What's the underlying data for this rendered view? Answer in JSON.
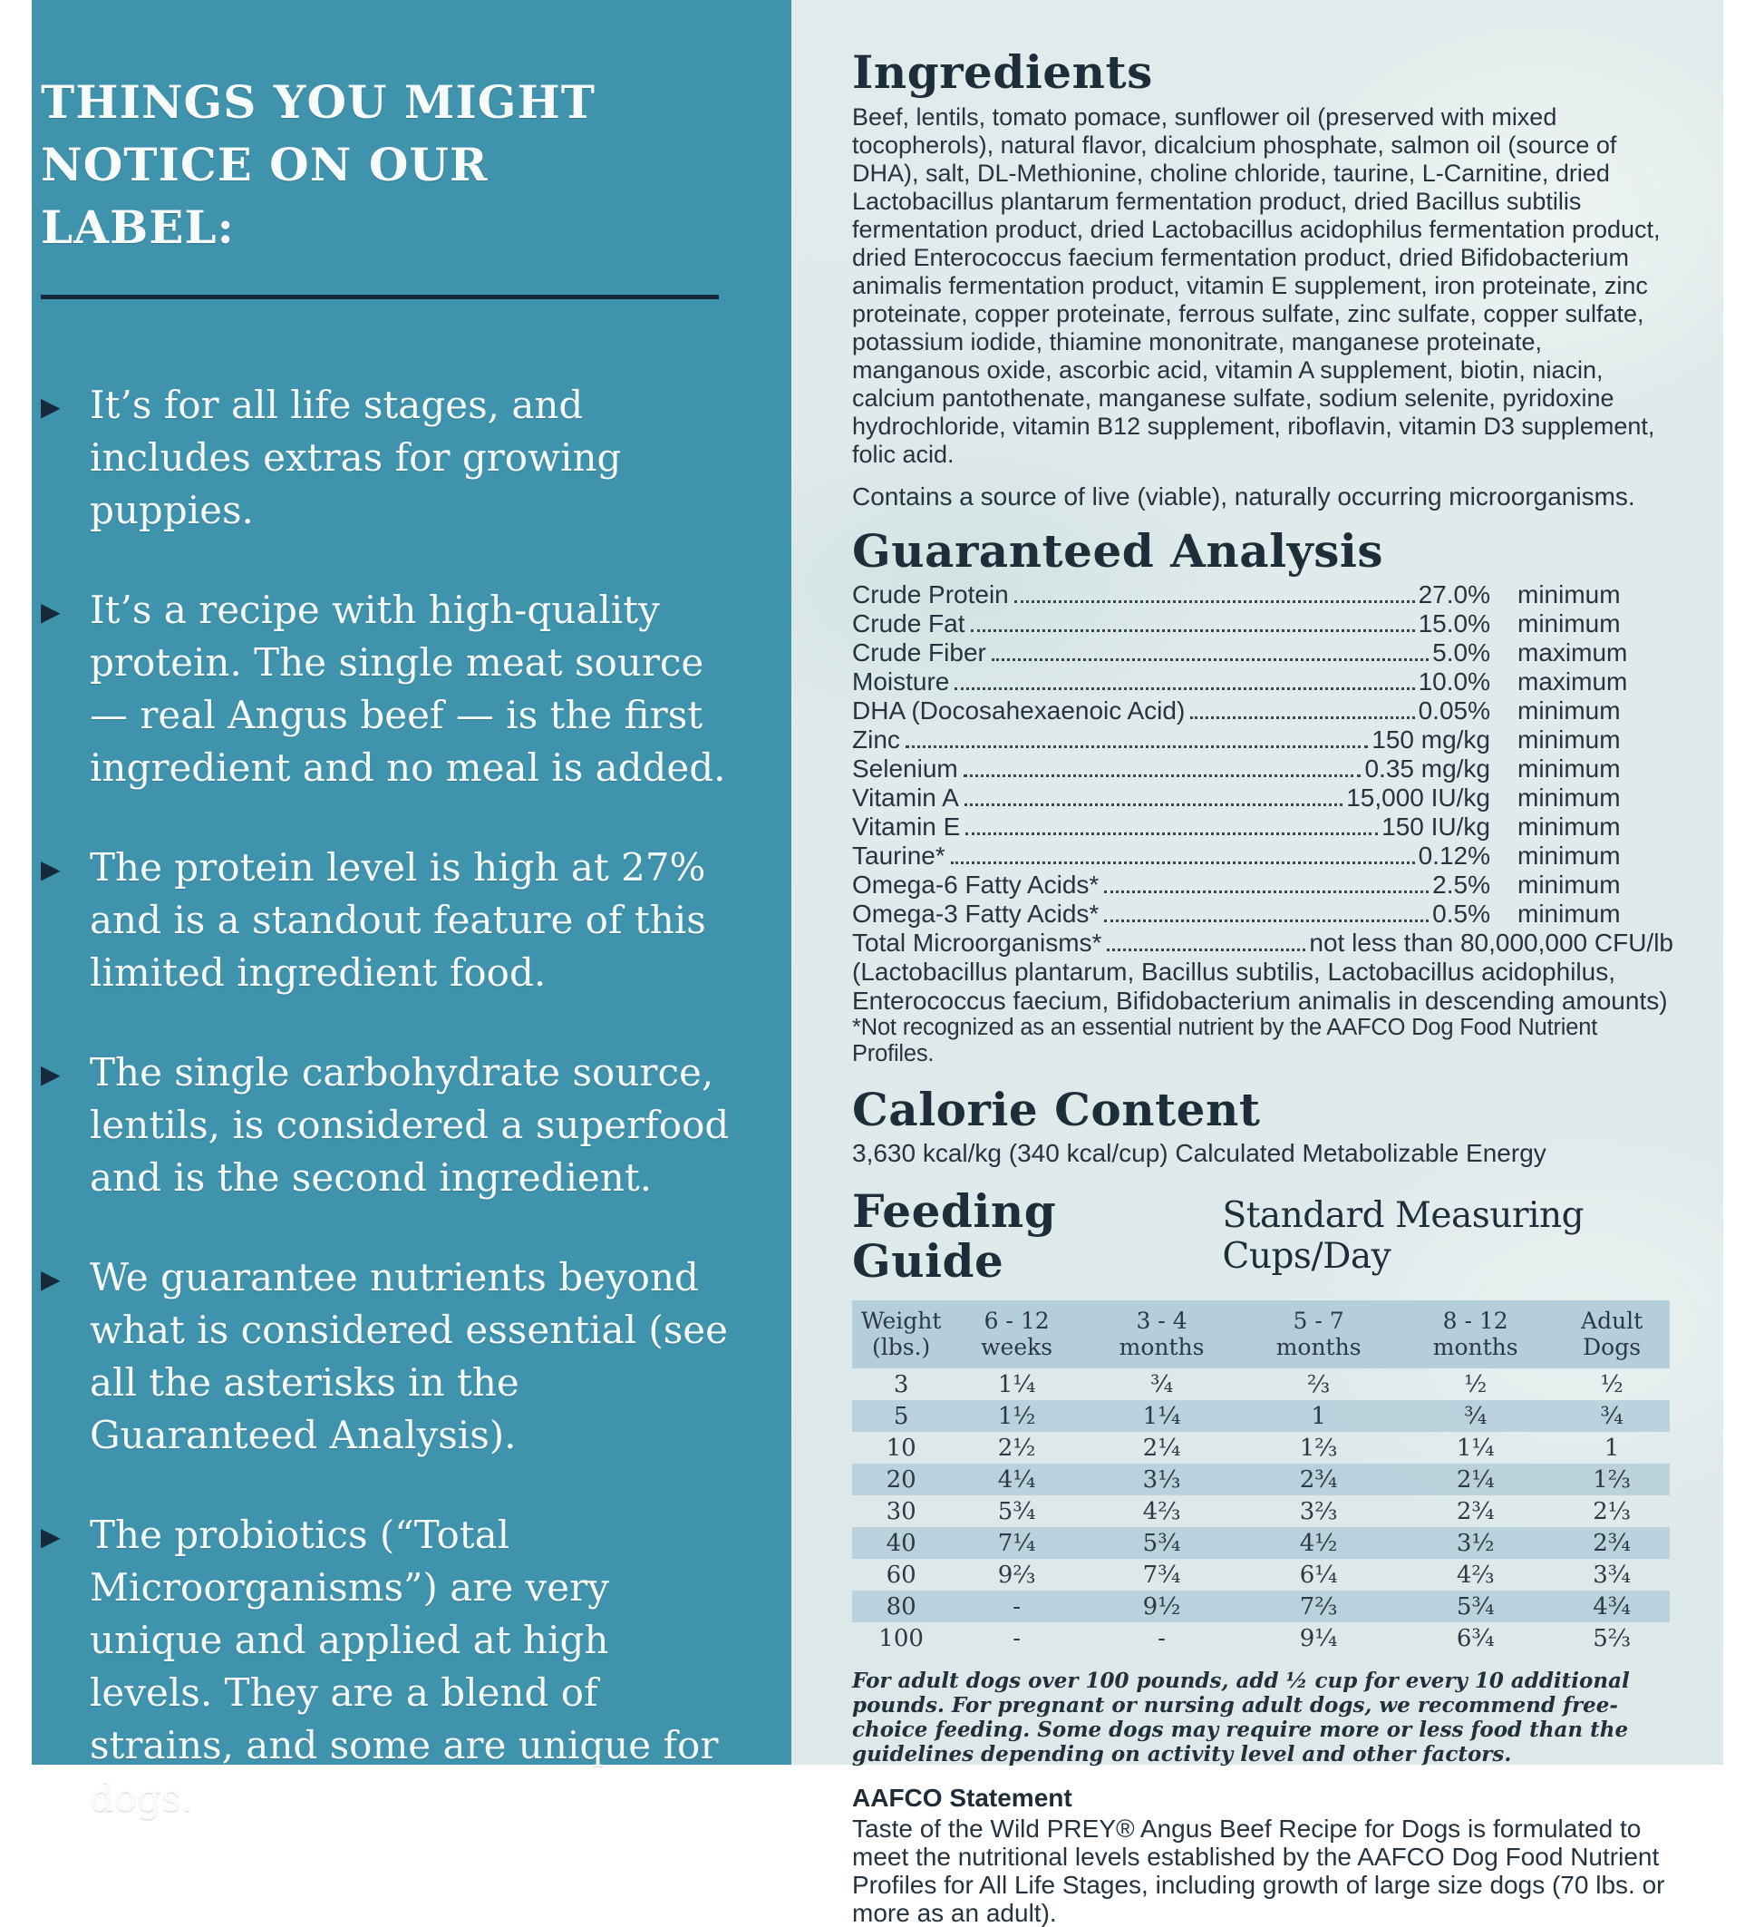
{
  "colors": {
    "teal_panel": "#3f93ac",
    "dark_ink": "#16293a",
    "right_panel_bg": "#dfe9ea",
    "table_stripe": "#b4cedb",
    "left_text": "#f7fbfa"
  },
  "left_panel": {
    "heading": "THINGS YOU MIGHT NOTICE ON OUR LABEL:",
    "bullet_glyph": "▶",
    "bullets": [
      "It’s for all life stages, and includes extras for growing puppies.",
      "It’s a recipe with high-quality protein. The single meat source — real Angus beef — is the first ingredient and no meal is added.",
      "The protein level is high at 27% and is a standout feature of this limited ingredient food.",
      "The single carbohydrate source, lentils, is considered a superfood and is the second ingredient.",
      "We guarantee nutrients beyond what is considered essential (see all the asterisks in the Guaranteed Analysis).",
      "The probiotics (“Total Microorganisms”) are very unique and applied at high levels. They are a blend of strains, and some are unique for dogs."
    ]
  },
  "ingredients": {
    "title": "Ingredients",
    "text": "Beef, lentils, tomato pomace, sunflower oil (preserved with mixed tocopherols), natural flavor, dicalcium phosphate, salmon oil (source of DHA), salt, DL-Methionine, choline chloride, taurine, L-Carnitine, dried Lactobacillus plantarum fermentation product, dried Bacillus subtilis fermentation product, dried Lactobacillus acidophilus fermentation product, dried Enterococcus faecium fermentation product, dried Bifidobacterium animalis fermentation product, vitamin E supplement, iron proteinate, zinc proteinate, copper proteinate, ferrous sulfate, zinc sulfate, copper sulfate, potassium iodide, thiamine mononitrate, manganese proteinate, manganous oxide, ascorbic acid, vitamin A supplement, biotin, niacin, calcium pantothenate, manganese sulfate, sodium selenite, pyridoxine hydrochloride, vitamin B12 supplement, riboflavin, vitamin D3 supplement, folic acid.",
    "contains_note": "Contains a source of live (viable), naturally occurring microorganisms."
  },
  "guaranteed_analysis": {
    "title": "Guaranteed Analysis",
    "rows": [
      {
        "label": "Crude Protein",
        "value": "27.0%",
        "qualifier": "minimum"
      },
      {
        "label": "Crude Fat",
        "value": "15.0%",
        "qualifier": "minimum"
      },
      {
        "label": "Crude Fiber",
        "value": "5.0%",
        "qualifier": "maximum"
      },
      {
        "label": "Moisture",
        "value": "10.0%",
        "qualifier": "maximum"
      },
      {
        "label": "DHA (Docosahexaenoic Acid)",
        "value": "0.05%",
        "qualifier": "minimum"
      },
      {
        "label": "Zinc",
        "value": "150 mg/kg",
        "qualifier": "minimum"
      },
      {
        "label": "Selenium",
        "value": "0.35 mg/kg",
        "qualifier": "minimum"
      },
      {
        "label": "Vitamin A",
        "value": "15,000 IU/kg",
        "qualifier": "minimum"
      },
      {
        "label": "Vitamin E",
        "value": "150 IU/kg",
        "qualifier": "minimum"
      },
      {
        "label": "Taurine*",
        "value": "0.12%",
        "qualifier": "minimum"
      },
      {
        "label": "Omega-6 Fatty Acids*",
        "value": "2.5%",
        "qualifier": "minimum"
      },
      {
        "label": "Omega-3 Fatty Acids*",
        "value": "0.5%",
        "qualifier": "minimum"
      },
      {
        "label": "Total Microorganisms*",
        "value": "not less than 80,000,000 CFU/lb",
        "qualifier": ""
      }
    ],
    "species_note": "(Lactobacillus plantarum, Bacillus subtilis, Lactobacillus acidophilus, Enterococcus faecium, Bifidobacterium animalis in descending amounts)",
    "asterisk_note": "*Not recognized as an essential nutrient by the AAFCO Dog Food Nutrient Profiles."
  },
  "calorie_content": {
    "title": "Calorie Content",
    "text": "3,630 kcal/kg (340 kcal/cup) Calculated Metabolizable Energy"
  },
  "feeding_guide": {
    "title": "Feeding Guide",
    "subtitle": "Standard Measuring Cups/Day",
    "columns": [
      {
        "line1": "Weight",
        "line2": "(lbs.)"
      },
      {
        "line1": "6 - 12",
        "line2": "weeks"
      },
      {
        "line1": "3 - 4",
        "line2": "months"
      },
      {
        "line1": "5 - 7",
        "line2": "months"
      },
      {
        "line1": "8 - 12",
        "line2": "months"
      },
      {
        "line1": "Adult",
        "line2": "Dogs"
      }
    ],
    "rows": [
      [
        "3",
        "1¼",
        "¾",
        "⅔",
        "½",
        "½"
      ],
      [
        "5",
        "1½",
        "1¼",
        "1",
        "¾",
        "¾"
      ],
      [
        "10",
        "2½",
        "2¼",
        "1⅔",
        "1¼",
        "1"
      ],
      [
        "20",
        "4¼",
        "3⅓",
        "2¾",
        "2¼",
        "1⅔"
      ],
      [
        "30",
        "5¾",
        "4⅔",
        "3⅔",
        "2¾",
        "2⅓"
      ],
      [
        "40",
        "7¼",
        "5¾",
        "4½",
        "3½",
        "2¾"
      ],
      [
        "60",
        "9⅔",
        "7¾",
        "6¼",
        "4⅔",
        "3¾"
      ],
      [
        "80",
        "-",
        "9½",
        "7⅔",
        "5¾",
        "4¾"
      ],
      [
        "100",
        "-",
        "-",
        "9¼",
        "6¾",
        "5⅔"
      ]
    ],
    "footnote": "For adult dogs over 100 pounds, add ½ cup for every 10 additional pounds. For pregnant or nursing adult dogs, we recommend free-choice feeding. Some dogs may require more or less food than the guidelines depending on activity level and other factors."
  },
  "aafco": {
    "title": "AAFCO Statement",
    "text": "Taste of the Wild PREY® Angus Beef Recipe for Dogs is formulated to meet the nutritional levels established by the AAFCO Dog Food Nutrient Profiles for All Life Stages, including growth of large size dogs (70 lbs. or more as an adult)."
  }
}
